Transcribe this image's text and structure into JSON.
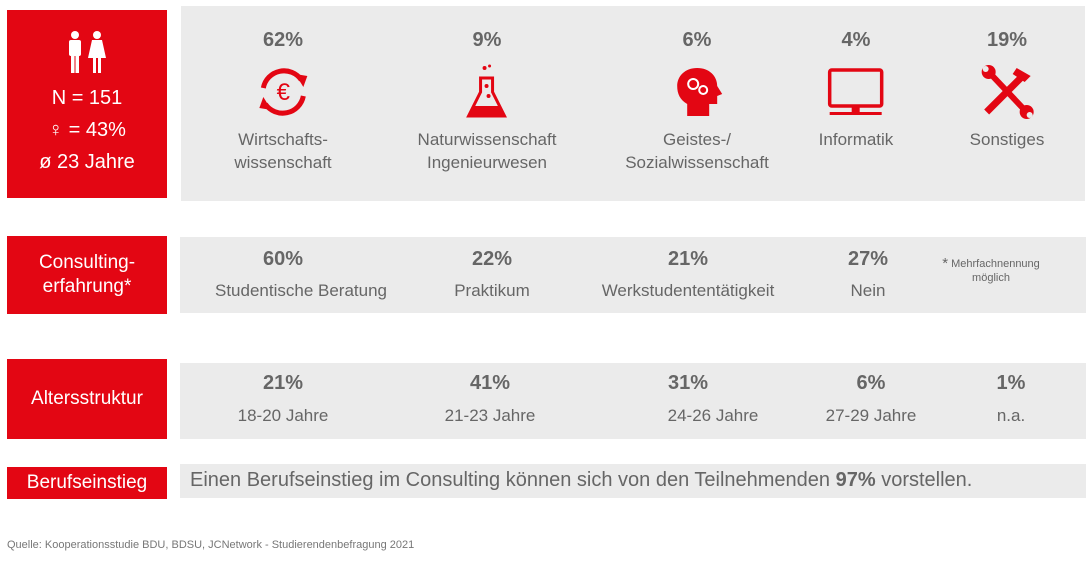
{
  "sample": {
    "n": "N = 151",
    "female": "♀ = 43%",
    "age": "ø 23 Jahre"
  },
  "fields": [
    {
      "pct": "62%",
      "label1": "Wirtschafts-",
      "label2": "wissenschaft",
      "icon": "euro-cycle-icon"
    },
    {
      "pct": "9%",
      "label1": "Naturwissenschaft",
      "label2": "Ingenieurwesen",
      "icon": "flask-icon"
    },
    {
      "pct": "6%",
      "label1": "Geistes-/",
      "label2": "Sozialwissenschaft",
      "icon": "head-gears-icon"
    },
    {
      "pct": "4%",
      "label1": "Informatik",
      "label2": "",
      "icon": "monitor-icon"
    },
    {
      "pct": "19%",
      "label1": "Sonstiges",
      "label2": "",
      "icon": "tools-icon"
    }
  ],
  "consulting": {
    "title1": "Consulting-",
    "title2": "erfahrung*",
    "items": [
      {
        "pct": "60%",
        "label": "Studentische Beratung"
      },
      {
        "pct": "22%",
        "label": "Praktikum"
      },
      {
        "pct": "21%",
        "label": "Werkstudententätigkeit"
      },
      {
        "pct": "27%",
        "label": "Nein"
      }
    ],
    "note_star": "*",
    "note1": "Mehrfachnennung",
    "note2": "möglich"
  },
  "age": {
    "title": "Altersstruktur",
    "items": [
      {
        "pct": "21%",
        "label": "18-20 Jahre"
      },
      {
        "pct": "41%",
        "label": "21-23 Jahre"
      },
      {
        "pct": "31%",
        "label": "24-26 Jahre"
      },
      {
        "pct": "6%",
        "label": "27-29 Jahre"
      },
      {
        "pct": "1%",
        "label": "n.a."
      }
    ]
  },
  "career": {
    "title": "Berufseinstieg",
    "text_before": "Einen Berufseinstieg im Consulting können sich von den Teilnehmenden ",
    "value": "97%",
    "text_after": " vorstellen."
  },
  "source": "Quelle: Kooperationsstudie BDU, BDSU, JCNetwork - Studierendenbefragung 2021",
  "colors": {
    "accent": "#e30613",
    "panel": "#ebebeb",
    "text": "#666666"
  }
}
